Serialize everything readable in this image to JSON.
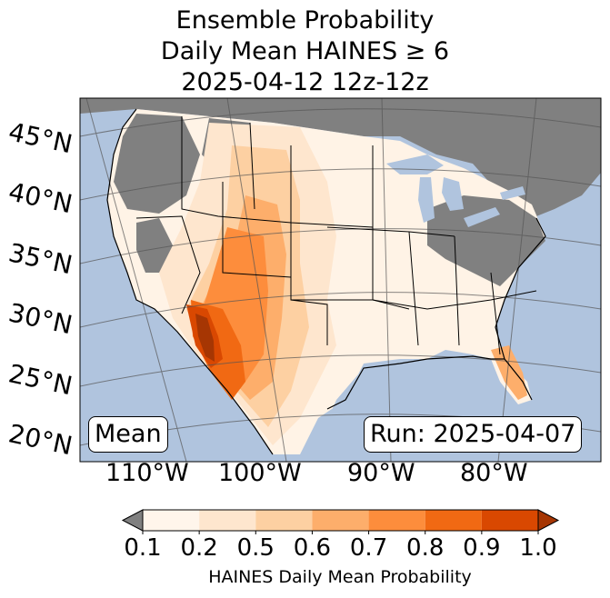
{
  "title": {
    "line1": "Ensemble Probability",
    "line2": "Daily Mean HAINES ≥ 6",
    "line3": "2025-04-12 12z-12z"
  },
  "map": {
    "lat_labels": [
      "45°N",
      "40°N",
      "35°N",
      "30°N",
      "25°N",
      "20°N"
    ],
    "lon_labels": [
      "110°W",
      "100°W",
      "90°W",
      "80°W"
    ],
    "mean_label": "Mean",
    "run_label": "Run: 2025-04-07",
    "colors": {
      "ocean": "#b0c4de",
      "nodata": "#808080",
      "low": "#fff3e6"
    }
  },
  "colorbar": {
    "ticks": [
      "0.1",
      "0.2",
      "0.5",
      "0.6",
      "0.7",
      "0.8",
      "0.9",
      "1.0"
    ],
    "colors": [
      "#fff5eb",
      "#fee6ce",
      "#fdd0a2",
      "#fdae6b",
      "#fd8d3c",
      "#f16913",
      "#d94801",
      "#a63603"
    ],
    "under_color": "#808080",
    "label": "HAINES Daily Mean Probability"
  }
}
